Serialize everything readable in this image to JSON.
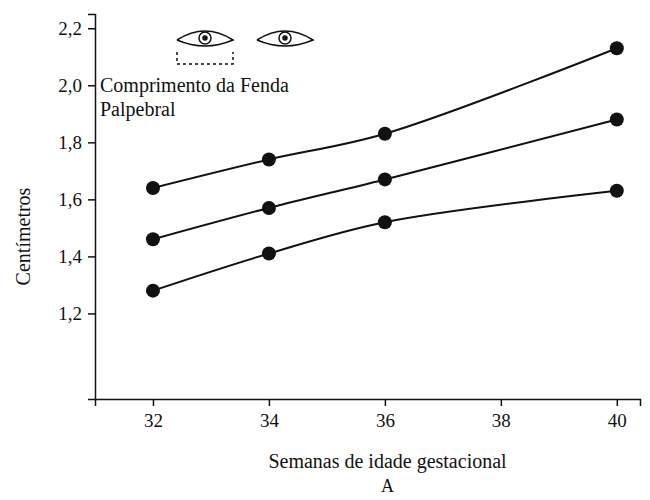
{
  "chart_data": {
    "type": "line",
    "title": "Comprimento da Fenda Palpebral",
    "subtitle": "A",
    "x_label": "Semanas de idade gestacional",
    "y_label": "Centímetros",
    "x": [
      32,
      34,
      36,
      40
    ],
    "series": [
      {
        "color": "#111111",
        "marker": "circle",
        "line_style": "solid",
        "values": [
          1.64,
          1.74,
          1.83,
          2.13
        ]
      },
      {
        "color": "#111111",
        "marker": "circle",
        "line_style": "solid",
        "values": [
          1.46,
          1.57,
          1.67,
          1.88
        ]
      },
      {
        "color": "#111111",
        "marker": "circle",
        "line_style": "solid",
        "values": [
          1.28,
          1.41,
          1.52,
          1.63
        ]
      }
    ],
    "xlim": [
      31,
      40.4
    ],
    "xticks": [
      32,
      34,
      36,
      38,
      40
    ],
    "ylim": [
      0.9,
      2.25
    ],
    "yticks": [
      {
        "value": 1.2,
        "label": "1,2"
      },
      {
        "value": 1.4,
        "label": "1,4"
      },
      {
        "value": 1.6,
        "label": "1,6"
      },
      {
        "value": 1.8,
        "label": "1,8"
      },
      {
        "value": 2.0,
        "label": "2,0"
      },
      {
        "value": 2.2,
        "label": "2,2"
      }
    ],
    "grid": false
  }
}
